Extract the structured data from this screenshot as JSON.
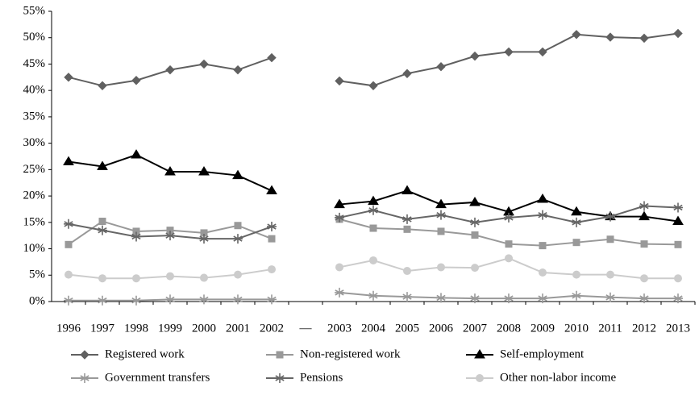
{
  "chart_data": {
    "type": "line",
    "categories": [
      "1996",
      "1997",
      "1998",
      "1999",
      "2000",
      "2001",
      "2002",
      "—",
      "2003",
      "2004",
      "2005",
      "2006",
      "2007",
      "2008",
      "2009",
      "2010",
      "2011",
      "2012",
      "2013"
    ],
    "series": [
      {
        "name": "Registered work",
        "color": "#606060",
        "marker": "diamond",
        "values": [
          42.5,
          40.9,
          41.9,
          43.9,
          45.0,
          43.9,
          46.2,
          null,
          41.8,
          40.9,
          43.2,
          44.5,
          46.5,
          47.3,
          47.3,
          50.6,
          50.1,
          49.9,
          50.8
        ]
      },
      {
        "name": "Non-registered work",
        "color": "#999999",
        "marker": "square",
        "values": [
          10.8,
          15.2,
          13.3,
          13.5,
          13.0,
          14.4,
          11.9,
          null,
          15.6,
          13.9,
          13.7,
          13.3,
          12.6,
          10.9,
          10.6,
          11.2,
          11.8,
          10.9,
          10.8
        ]
      },
      {
        "name": "Self-employment",
        "color": "#000000",
        "marker": "triangle",
        "values": [
          26.5,
          25.6,
          27.8,
          24.6,
          24.6,
          23.9,
          21.0,
          null,
          18.4,
          19.0,
          21.0,
          18.4,
          18.8,
          17.0,
          19.4,
          17.0,
          16.1,
          16.1,
          15.2
        ]
      },
      {
        "name": "Government transfers",
        "color": "#999999",
        "marker": "star",
        "values": [
          0.2,
          0.2,
          0.2,
          0.4,
          0.4,
          0.4,
          0.4,
          null,
          1.7,
          1.1,
          0.9,
          0.7,
          0.6,
          0.6,
          0.6,
          1.1,
          0.8,
          0.6,
          0.6
        ]
      },
      {
        "name": "Pensions",
        "color": "#666666",
        "marker": "star",
        "values": [
          14.7,
          13.5,
          12.3,
          12.5,
          11.9,
          11.9,
          14.2,
          null,
          15.9,
          17.3,
          15.6,
          16.4,
          15.0,
          15.9,
          16.4,
          15.0,
          16.1,
          18.1,
          17.8
        ]
      },
      {
        "name": "Other non-labor income",
        "color": "#cccccc",
        "marker": "circle",
        "values": [
          5.1,
          4.4,
          4.4,
          4.8,
          4.5,
          5.1,
          6.1,
          null,
          6.5,
          7.8,
          5.8,
          6.5,
          6.4,
          8.2,
          5.5,
          5.1,
          5.1,
          4.4,
          4.4
        ]
      }
    ],
    "ylim": [
      0,
      55
    ],
    "yticks": [
      {
        "value": 0,
        "label": "0%"
      },
      {
        "value": 5,
        "label": "5%"
      },
      {
        "value": 10,
        "label": "10%"
      },
      {
        "value": 15,
        "label": "15%"
      },
      {
        "value": 20,
        "label": "20%"
      },
      {
        "value": 25,
        "label": "25%"
      },
      {
        "value": 30,
        "label": "30%"
      },
      {
        "value": 35,
        "label": "35%"
      },
      {
        "value": 40,
        "label": "40%"
      },
      {
        "value": 45,
        "label": "45%"
      },
      {
        "value": 50,
        "label": "50%"
      },
      {
        "value": 55,
        "label": "55%"
      }
    ],
    "grid": false
  }
}
